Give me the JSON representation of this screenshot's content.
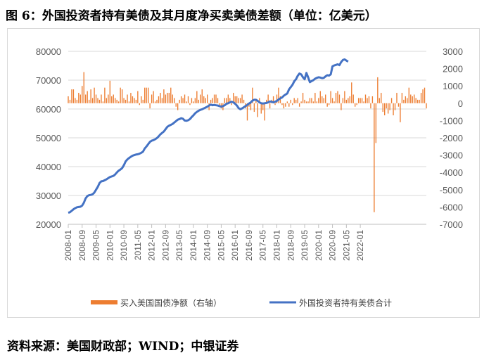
{
  "figure": {
    "title": "图 6：外国投资者持有美债及其月度净买卖美债差额（单位：亿美元）",
    "source": "资料来源：美国财政部；WIND；中银证券"
  },
  "colors": {
    "bar": "#ED7D31",
    "line": "#4472C4",
    "grid": "#d9d9d9"
  },
  "chart_data": {
    "type": "bar+line",
    "x_ticks": [
      "2008-01",
      "2008-09",
      "2009-05",
      "2010-01",
      "2010-09",
      "2011-05",
      "2012-01",
      "2012-09",
      "2013-05",
      "2014-01",
      "2014-09",
      "2015-05",
      "2016-01",
      "2016-09",
      "2017-05",
      "2018-01",
      "2018-09",
      "2019-05",
      "2020-01",
      "2020-09",
      "2021-05",
      "2022-01"
    ],
    "y_left": {
      "ticks": [
        20000,
        30000,
        40000,
        50000,
        60000,
        70000,
        80000
      ],
      "range": [
        20000,
        80000
      ]
    },
    "y_right": {
      "ticks": [
        -7000,
        -6000,
        -5000,
        -4000,
        -3000,
        -2000,
        -1000,
        0,
        1000,
        2000,
        3000
      ],
      "range": [
        -7000,
        3000
      ]
    },
    "start": "2008-01",
    "series": [
      {
        "name": "买入美国国债净额（右轴）",
        "type": "bar",
        "axis": "right",
        "values": [
          400,
          200,
          800,
          800,
          300,
          200,
          600,
          500,
          1000,
          1800,
          500,
          700,
          200,
          800,
          300,
          900,
          500,
          300,
          200,
          500,
          100,
          900,
          300,
          500,
          1300,
          400,
          500,
          300,
          200,
          100,
          900,
          800,
          300,
          200,
          500,
          100,
          600,
          400,
          300,
          200,
          700,
          -100,
          400,
          200,
          900,
          900,
          900,
          -300,
          500,
          700,
          100,
          200,
          400,
          600,
          300,
          800,
          500,
          600,
          600,
          900,
          500,
          300,
          -200,
          -400,
          200,
          400,
          300,
          500,
          100,
          400,
          -100,
          300,
          100,
          300,
          700,
          200,
          500,
          800,
          400,
          300,
          500,
          -400,
          200,
          300,
          500,
          500,
          300,
          -100,
          -300,
          -400,
          300,
          300,
          500,
          300,
          -100,
          600,
          400,
          400,
          300,
          300,
          500,
          200,
          -300,
          -1000,
          -200,
          -400,
          900,
          -500,
          200,
          -800,
          300,
          -600,
          -400,
          -1000,
          200,
          500,
          -300,
          200,
          400,
          -100,
          500,
          900,
          400,
          -100,
          -300,
          -200,
          100,
          -200,
          200,
          -100,
          300,
          200,
          300,
          -200,
          100,
          600,
          200,
          100,
          100,
          300,
          300,
          100,
          600,
          100,
          300,
          700,
          400,
          300,
          500,
          -200,
          -100,
          700,
          300,
          100,
          600,
          700,
          500,
          -400,
          300,
          700,
          200,
          300,
          400,
          1200,
          500,
          -200,
          -100,
          300,
          300,
          300,
          100,
          500,
          300,
          400,
          -300,
          400,
          -6300,
          -2300,
          1500,
          300,
          600,
          -500,
          -700,
          -300,
          -600,
          -400,
          300,
          -700,
          -400,
          600,
          -200,
          -1100,
          600,
          200,
          400,
          300,
          900,
          500,
          400,
          500,
          300,
          200,
          200,
          600,
          800,
          900,
          -300
        ],
        "dates_note": ""
      },
      {
        "name": "外国投资者持有美债合计",
        "type": "line",
        "axis": "left",
        "values": [
          24000,
          24200,
          24700,
          25200,
          25600,
          25900,
          26000,
          26100,
          26500,
          27500,
          29000,
          29800,
          30100,
          30200,
          30400,
          31000,
          32000,
          33000,
          34300,
          34900,
          35000,
          35300,
          35600,
          36000,
          36400,
          36600,
          36800,
          37300,
          38000,
          38600,
          39000,
          39500,
          40500,
          41800,
          42500,
          43000,
          43400,
          43800,
          44000,
          44200,
          44300,
          44500,
          44800,
          45200,
          46300,
          47000,
          47800,
          48600,
          49000,
          49200,
          49500,
          49900,
          50500,
          51200,
          51700,
          52200,
          53000,
          53800,
          54200,
          54500,
          54800,
          55300,
          55800,
          56300,
          56500,
          56800,
          56600,
          56000,
          55900,
          56100,
          56500,
          57200,
          57800,
          58500,
          59000,
          59400,
          59700,
          59900,
          60200,
          60500,
          60800,
          61200,
          61500,
          61300,
          61400,
          61300,
          61200,
          61000,
          60800,
          61000,
          61300,
          61800,
          62000,
          62300,
          62500,
          62300,
          61800,
          61200,
          60300,
          59900,
          60200,
          60600,
          61000,
          61400,
          61900,
          62300,
          62900,
          63200,
          63200,
          62800,
          62300,
          62000,
          61900,
          62000,
          62100,
          62300,
          62600,
          62500,
          62300,
          62500,
          62800,
          63300,
          63700,
          64000,
          64600,
          65000,
          65400,
          66800,
          67600,
          68400,
          69600,
          70300,
          71500,
          72300,
          72000,
          71000,
          70300,
          72500,
          71000,
          69300,
          69700,
          70000,
          70500,
          70800,
          71000,
          70900,
          70700,
          70800,
          71300,
          71700,
          71600,
          72000,
          74800,
          75100,
          75300,
          75500,
          75200,
          76300,
          77000,
          77200,
          76800,
          76400
        ],
        "line_start_index": 0
      }
    ],
    "legend_position": "bottom"
  }
}
